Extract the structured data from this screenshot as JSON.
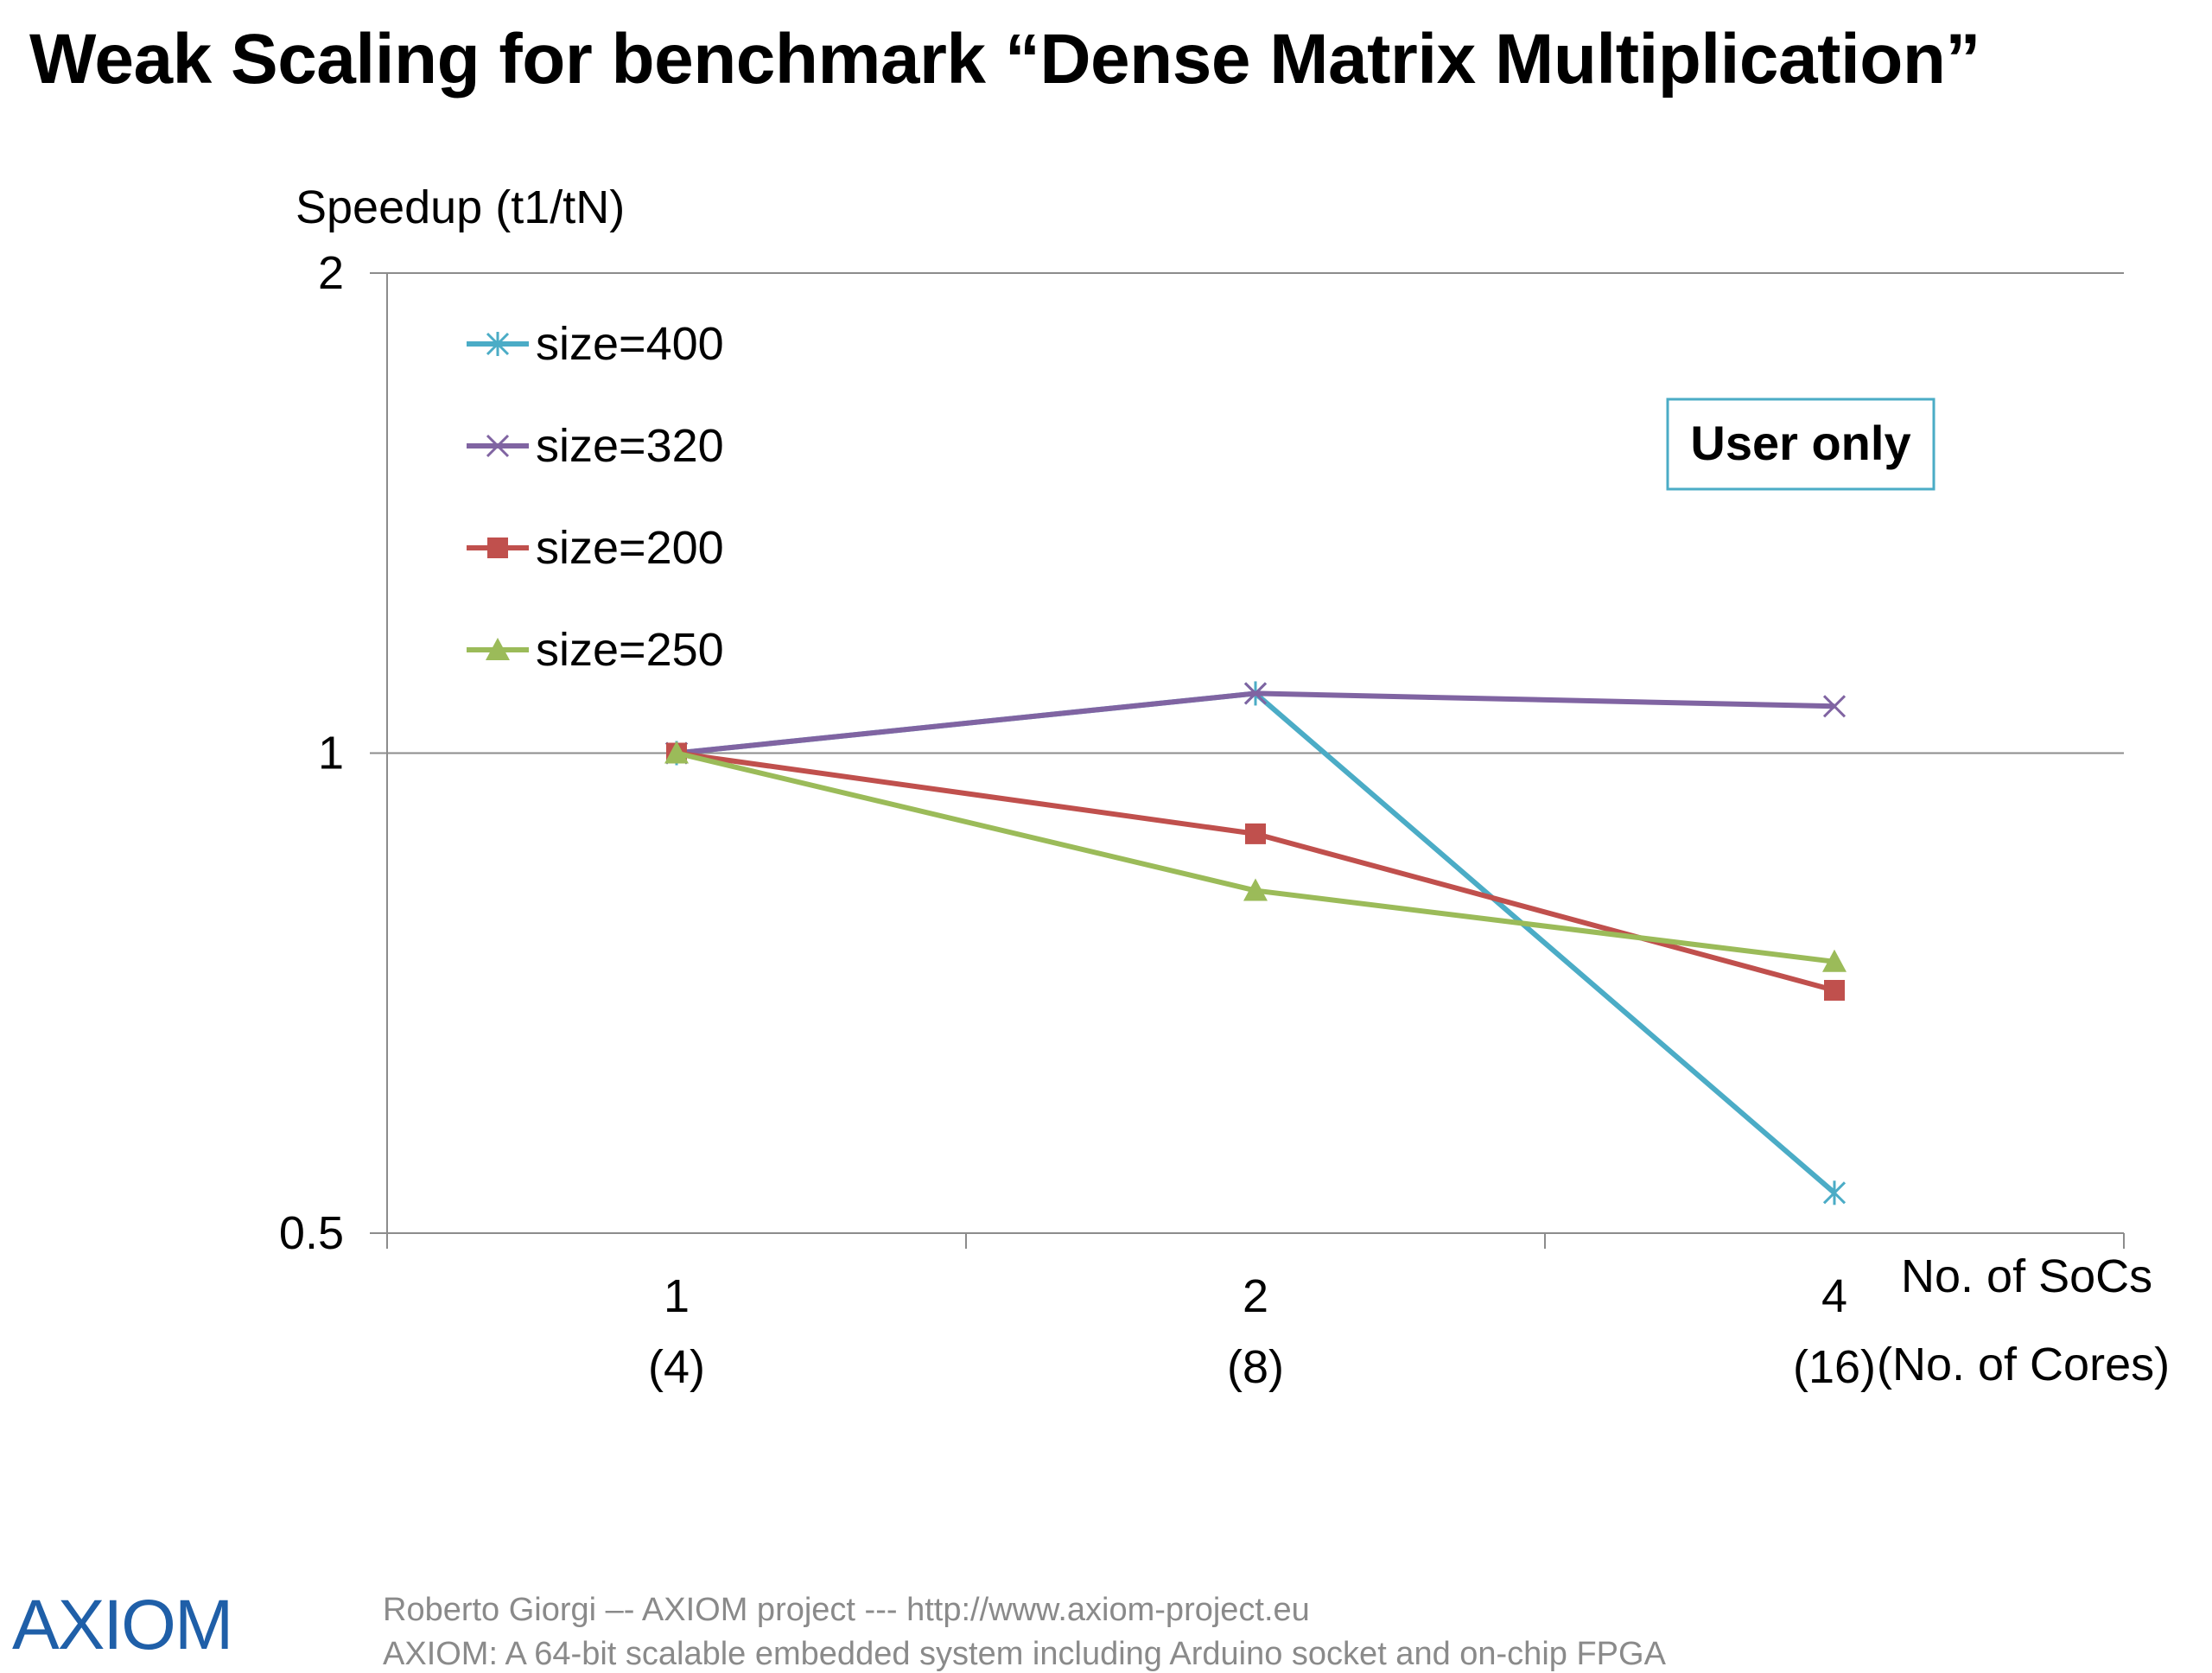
{
  "title": "Weak Scaling for benchmark “Dense Matrix Multiplication”",
  "footer": {
    "line1": "Roberto Giorgi  –-   AXIOM project  ---  http://www.axiom-project.eu",
    "line2": "AXIOM: A 64-bit scalable embedded system including Arduino socket and on-chip FPGA"
  },
  "logo_text": "AXIOM",
  "chart_data": {
    "type": "line",
    "title": "Weak Scaling for benchmark “Dense Matrix Multiplication”",
    "ylabel": "Speedup (t1/tN)",
    "xlabel_primary": "No. of SoCs",
    "xlabel_secondary": "(No. of Cores)",
    "y_scale": "log2",
    "ylim": [
      0.5,
      2
    ],
    "yticks": [
      0.5,
      1,
      2
    ],
    "ytick_labels": [
      "0.5",
      "1",
      "2"
    ],
    "categories": [
      "1",
      "2",
      "4"
    ],
    "categories_secondary": [
      "(4)",
      "(8)",
      "(16)"
    ],
    "grid": "horizontal major gridlines",
    "legend_position": "top-left inside plot",
    "annotation": "User only",
    "series": [
      {
        "name": "size=400",
        "color": "#4bacc6",
        "marker": "asterisk",
        "values": [
          1.0,
          1.09,
          0.53
        ]
      },
      {
        "name": "size=320",
        "color": "#8064a2",
        "marker": "x",
        "values": [
          1.0,
          1.09,
          1.07
        ]
      },
      {
        "name": "size=200",
        "color": "#c0504d",
        "marker": "square",
        "values": [
          1.0,
          0.89,
          0.71
        ]
      },
      {
        "name": "size=250",
        "color": "#9bbb59",
        "marker": "triangle",
        "values": [
          1.0,
          0.82,
          0.74
        ]
      }
    ]
  }
}
